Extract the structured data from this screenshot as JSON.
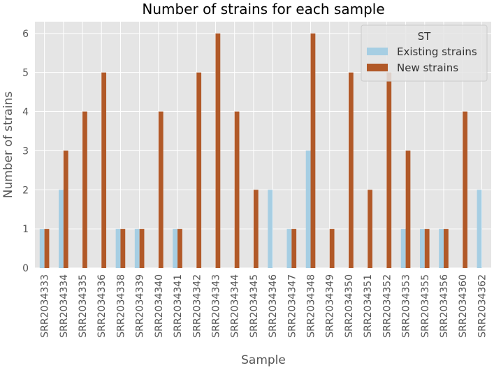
{
  "chart_data": {
    "type": "bar",
    "title": "Number of strains for each sample",
    "xlabel": "Sample",
    "ylabel": "Number of strains",
    "ylim": [
      0,
      6.3
    ],
    "yticks": [
      0,
      1,
      2,
      3,
      4,
      5,
      6
    ],
    "grid": true,
    "legend": {
      "title": "ST",
      "placement": "top-right"
    },
    "categories": [
      "SRR2034333",
      "SRR2034334",
      "SRR2034335",
      "SRR2034336",
      "SRR2034338",
      "SRR2034339",
      "SRR2034340",
      "SRR2034341",
      "SRR2034342",
      "SRR2034343",
      "SRR2034344",
      "SRR2034345",
      "SRR2034346",
      "SRR2034347",
      "SRR2034348",
      "SRR2034349",
      "SRR2034350",
      "SRR2034351",
      "SRR2034352",
      "SRR2034353",
      "SRR2034355",
      "SRR2034356",
      "SRR2034360",
      "SRR2034362"
    ],
    "series": [
      {
        "name": "Existing strains",
        "color": "#a6cee3",
        "values": [
          1,
          2,
          0,
          0,
          1,
          1,
          0,
          1,
          0,
          0,
          0,
          0,
          2,
          1,
          3,
          0,
          0,
          0,
          0,
          1,
          1,
          1,
          0,
          2
        ]
      },
      {
        "name": "New strains",
        "color": "#b15928",
        "values": [
          1,
          3,
          4,
          5,
          1,
          1,
          4,
          1,
          5,
          6,
          4,
          2,
          0,
          1,
          6,
          1,
          5,
          2,
          5,
          3,
          1,
          1,
          4,
          0
        ]
      }
    ],
    "colors": {
      "plot_background": "#e5e5e5",
      "grid": "#ffffff"
    }
  }
}
